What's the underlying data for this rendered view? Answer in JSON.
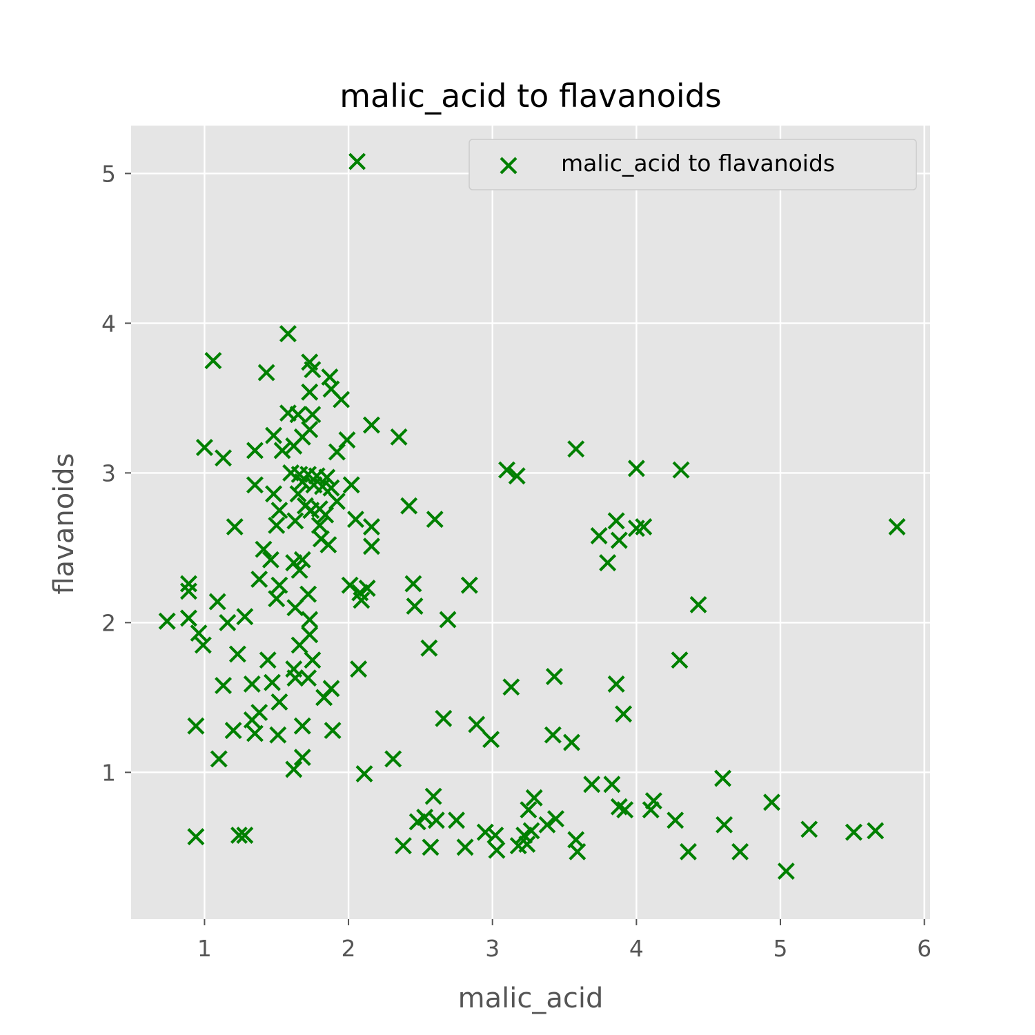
{
  "chart_data": {
    "type": "scatter",
    "title": "malic_acid to flavanoids",
    "xlabel": "malic_acid",
    "ylabel": "flavanoids",
    "xlim": [
      0.49,
      6.04
    ],
    "ylim": [
      0.02,
      5.32
    ],
    "xticks": [
      "1",
      "2",
      "3",
      "4",
      "5",
      "6"
    ],
    "yticks": [
      "1",
      "2",
      "3",
      "4",
      "5"
    ],
    "grid": true,
    "legend_position": "top-right",
    "color": "#008000",
    "marker": "x",
    "series": [
      {
        "name": "malic_acid to flavanoids",
        "points": [
          [
            2.06,
            5.08
          ],
          [
            1.58,
            3.93
          ],
          [
            1.06,
            3.75
          ],
          [
            1.73,
            3.74
          ],
          [
            1.75,
            3.69
          ],
          [
            1.43,
            3.67
          ],
          [
            1.87,
            3.64
          ],
          [
            1.88,
            3.56
          ],
          [
            1.73,
            3.54
          ],
          [
            1.95,
            3.49
          ],
          [
            1.58,
            3.4
          ],
          [
            1.65,
            3.39
          ],
          [
            1.75,
            3.39
          ],
          [
            1.73,
            3.29
          ],
          [
            2.16,
            3.32
          ],
          [
            1.48,
            3.25
          ],
          [
            1.68,
            3.24
          ],
          [
            2.35,
            3.24
          ],
          [
            1.99,
            3.22
          ],
          [
            1.0,
            3.17
          ],
          [
            1.62,
            3.18
          ],
          [
            1.35,
            3.15
          ],
          [
            1.54,
            3.15
          ],
          [
            1.92,
            3.14
          ],
          [
            1.13,
            3.1
          ],
          [
            3.58,
            3.16
          ],
          [
            1.6,
            3.0
          ],
          [
            1.66,
            2.99
          ],
          [
            1.72,
            2.99
          ],
          [
            1.78,
            2.98
          ],
          [
            1.85,
            2.97
          ],
          [
            1.68,
            2.94
          ],
          [
            1.76,
            2.92
          ],
          [
            1.82,
            2.91
          ],
          [
            1.88,
            2.9
          ],
          [
            1.35,
            2.92
          ],
          [
            2.02,
            2.92
          ],
          [
            1.48,
            2.86
          ],
          [
            1.65,
            2.86
          ],
          [
            1.92,
            2.81
          ],
          [
            1.7,
            2.78
          ],
          [
            1.8,
            2.76
          ],
          [
            2.42,
            2.78
          ],
          [
            3.1,
            3.02
          ],
          [
            3.17,
            2.98
          ],
          [
            4.0,
            3.03
          ],
          [
            4.31,
            3.02
          ],
          [
            1.52,
            2.75
          ],
          [
            1.74,
            2.75
          ],
          [
            1.84,
            2.72
          ],
          [
            2.05,
            2.69
          ],
          [
            2.6,
            2.69
          ],
          [
            1.21,
            2.64
          ],
          [
            1.5,
            2.65
          ],
          [
            1.63,
            2.68
          ],
          [
            1.8,
            2.65
          ],
          [
            2.16,
            2.64
          ],
          [
            3.86,
            2.68
          ],
          [
            3.74,
            2.58
          ],
          [
            3.88,
            2.55
          ],
          [
            4.0,
            2.63
          ],
          [
            4.05,
            2.64
          ],
          [
            5.81,
            2.64
          ],
          [
            1.81,
            2.56
          ],
          [
            1.86,
            2.52
          ],
          [
            1.41,
            2.49
          ],
          [
            2.16,
            2.51
          ],
          [
            1.68,
            2.42
          ],
          [
            1.62,
            2.4
          ],
          [
            1.46,
            2.42
          ],
          [
            1.66,
            2.35
          ],
          [
            3.8,
            2.4
          ],
          [
            1.38,
            2.29
          ],
          [
            1.52,
            2.25
          ],
          [
            0.89,
            2.26
          ],
          [
            0.89,
            2.21
          ],
          [
            1.5,
            2.16
          ],
          [
            1.72,
            2.19
          ],
          [
            2.01,
            2.25
          ],
          [
            2.08,
            2.2
          ],
          [
            2.13,
            2.23
          ],
          [
            2.09,
            2.15
          ],
          [
            2.45,
            2.26
          ],
          [
            2.46,
            2.11
          ],
          [
            2.84,
            2.25
          ],
          [
            1.09,
            2.14
          ],
          [
            1.63,
            2.1
          ],
          [
            4.43,
            2.12
          ],
          [
            0.74,
            2.01
          ],
          [
            0.89,
            2.03
          ],
          [
            1.16,
            2.0
          ],
          [
            1.28,
            2.04
          ],
          [
            1.73,
            2.02
          ],
          [
            2.69,
            2.02
          ],
          [
            0.96,
            1.93
          ],
          [
            1.73,
            1.92
          ],
          [
            0.99,
            1.85
          ],
          [
            1.66,
            1.85
          ],
          [
            2.56,
            1.83
          ],
          [
            1.23,
            1.79
          ],
          [
            1.44,
            1.75
          ],
          [
            1.75,
            1.75
          ],
          [
            4.3,
            1.75
          ],
          [
            1.62,
            1.69
          ],
          [
            2.07,
            1.69
          ],
          [
            1.63,
            1.63
          ],
          [
            1.72,
            1.63
          ],
          [
            3.43,
            1.64
          ],
          [
            1.13,
            1.58
          ],
          [
            1.33,
            1.59
          ],
          [
            1.47,
            1.6
          ],
          [
            1.88,
            1.56
          ],
          [
            3.13,
            1.57
          ],
          [
            3.86,
            1.59
          ],
          [
            1.83,
            1.5
          ],
          [
            1.52,
            1.47
          ],
          [
            1.38,
            1.4
          ],
          [
            3.91,
            1.39
          ],
          [
            1.33,
            1.35
          ],
          [
            2.66,
            1.36
          ],
          [
            2.89,
            1.32
          ],
          [
            0.94,
            1.31
          ],
          [
            1.68,
            1.31
          ],
          [
            1.2,
            1.28
          ],
          [
            1.89,
            1.28
          ],
          [
            1.35,
            1.26
          ],
          [
            1.51,
            1.25
          ],
          [
            3.42,
            1.25
          ],
          [
            2.99,
            1.22
          ],
          [
            3.55,
            1.2
          ],
          [
            1.1,
            1.09
          ],
          [
            1.68,
            1.1
          ],
          [
            2.31,
            1.09
          ],
          [
            1.62,
            1.02
          ],
          [
            2.11,
            0.99
          ],
          [
            4.6,
            0.96
          ],
          [
            3.69,
            0.92
          ],
          [
            3.83,
            0.92
          ],
          [
            2.59,
            0.84
          ],
          [
            3.29,
            0.83
          ],
          [
            4.12,
            0.81
          ],
          [
            4.94,
            0.8
          ],
          [
            3.88,
            0.77
          ],
          [
            3.92,
            0.75
          ],
          [
            4.1,
            0.75
          ],
          [
            3.25,
            0.75
          ],
          [
            2.48,
            0.67
          ],
          [
            2.53,
            0.7
          ],
          [
            2.61,
            0.68
          ],
          [
            2.75,
            0.68
          ],
          [
            3.44,
            0.69
          ],
          [
            3.38,
            0.65
          ],
          [
            4.27,
            0.68
          ],
          [
            4.61,
            0.65
          ],
          [
            0.94,
            0.57
          ],
          [
            1.24,
            0.58
          ],
          [
            1.28,
            0.58
          ],
          [
            2.95,
            0.6
          ],
          [
            3.02,
            0.58
          ],
          [
            3.22,
            0.58
          ],
          [
            3.27,
            0.61
          ],
          [
            3.58,
            0.55
          ],
          [
            5.2,
            0.62
          ],
          [
            5.51,
            0.6
          ],
          [
            5.66,
            0.61
          ],
          [
            2.38,
            0.51
          ],
          [
            2.57,
            0.5
          ],
          [
            2.81,
            0.5
          ],
          [
            3.03,
            0.48
          ],
          [
            3.18,
            0.51
          ],
          [
            3.24,
            0.52
          ],
          [
            3.59,
            0.47
          ],
          [
            4.36,
            0.47
          ],
          [
            4.72,
            0.47
          ],
          [
            5.04,
            0.34
          ]
        ]
      }
    ]
  }
}
